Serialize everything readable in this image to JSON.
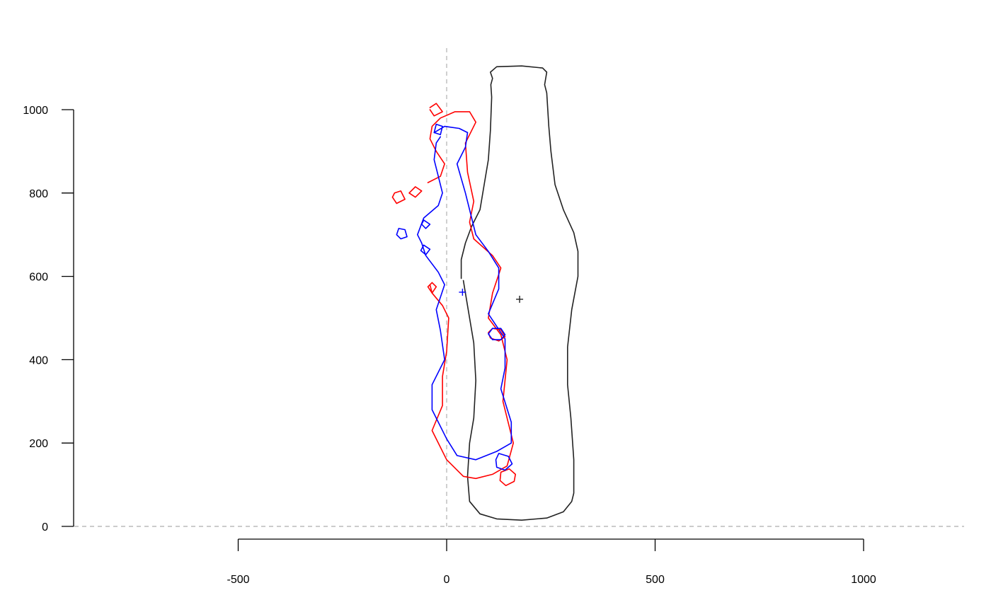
{
  "chart_data": {
    "type": "line",
    "xlim": [
      -500,
      1000
    ],
    "ylim": [
      0,
      1000
    ],
    "x_ticks": [
      -500,
      0,
      500,
      1000
    ],
    "y_ticks": [
      0,
      200,
      400,
      600,
      800,
      1000
    ],
    "x_tick_labels": [
      "-500",
      "0",
      "500",
      "1000"
    ],
    "y_tick_labels": [
      "0",
      "200",
      "400",
      "600",
      "800",
      "1000"
    ],
    "reference_lines": {
      "x": 0,
      "y": 0,
      "style": "dashed",
      "color": "#bbbbbb"
    },
    "grid": false,
    "series": [
      {
        "color": "#222222",
        "points": [
          [
            35,
            595
          ],
          [
            35,
            640
          ],
          [
            45,
            680
          ],
          [
            60,
            720
          ],
          [
            80,
            760
          ],
          [
            90,
            820
          ],
          [
            100,
            880
          ],
          [
            105,
            950
          ],
          [
            108,
            1030
          ],
          [
            106,
            1060
          ],
          [
            110,
            1075
          ],
          [
            105,
            1090
          ],
          [
            120,
            1103
          ],
          [
            180,
            1105
          ],
          [
            230,
            1100
          ],
          [
            240,
            1090
          ],
          [
            235,
            1060
          ],
          [
            240,
            1040
          ],
          [
            245,
            960
          ],
          [
            250,
            900
          ],
          [
            260,
            820
          ],
          [
            280,
            760
          ],
          [
            305,
            705
          ],
          [
            315,
            660
          ],
          [
            315,
            600
          ],
          [
            300,
            520
          ],
          [
            290,
            430
          ],
          [
            290,
            340
          ],
          [
            298,
            260
          ],
          [
            305,
            160
          ],
          [
            305,
            80
          ],
          [
            300,
            60
          ],
          [
            280,
            35
          ],
          [
            240,
            20
          ],
          [
            180,
            15
          ],
          [
            120,
            18
          ],
          [
            80,
            30
          ],
          [
            55,
            60
          ],
          [
            50,
            120
          ],
          [
            55,
            200
          ],
          [
            65,
            260
          ],
          [
            70,
            350
          ],
          [
            65,
            440
          ],
          [
            55,
            500
          ],
          [
            45,
            560
          ],
          [
            40,
            590
          ]
        ]
      },
      {
        "color": "#ff0000",
        "points": [
          [
            -45,
            825
          ],
          [
            -15,
            840
          ],
          [
            -5,
            870
          ],
          [
            -25,
            900
          ],
          [
            -40,
            930
          ],
          [
            -35,
            960
          ],
          [
            -15,
            980
          ],
          [
            20,
            995
          ],
          [
            55,
            995
          ],
          [
            70,
            970
          ],
          [
            45,
            920
          ],
          [
            50,
            850
          ],
          [
            65,
            780
          ],
          [
            55,
            730
          ],
          [
            65,
            690
          ],
          [
            110,
            650
          ],
          [
            130,
            620
          ],
          [
            110,
            560
          ],
          [
            100,
            500
          ],
          [
            130,
            460
          ],
          [
            145,
            400
          ],
          [
            135,
            300
          ],
          [
            160,
            200
          ],
          [
            145,
            145
          ],
          [
            110,
            125
          ],
          [
            70,
            115
          ],
          [
            40,
            120
          ],
          [
            0,
            160
          ],
          [
            -35,
            230
          ],
          [
            -10,
            290
          ],
          [
            -10,
            360
          ],
          [
            0,
            420
          ],
          [
            5,
            500
          ],
          [
            -10,
            530
          ],
          [
            -35,
            560
          ],
          [
            -40,
            580
          ]
        ]
      },
      {
        "color": "#0000ff",
        "points": [
          [
            -30,
            945
          ],
          [
            -5,
            960
          ],
          [
            30,
            955
          ],
          [
            50,
            945
          ],
          [
            45,
            910
          ],
          [
            25,
            870
          ],
          [
            45,
            800
          ],
          [
            60,
            740
          ],
          [
            70,
            700
          ],
          [
            100,
            660
          ],
          [
            125,
            620
          ],
          [
            125,
            570
          ],
          [
            100,
            510
          ],
          [
            140,
            450
          ],
          [
            140,
            380
          ],
          [
            130,
            330
          ],
          [
            155,
            250
          ],
          [
            155,
            200
          ],
          [
            120,
            180
          ],
          [
            70,
            160
          ],
          [
            25,
            170
          ],
          [
            0,
            210
          ],
          [
            -35,
            280
          ],
          [
            -35,
            340
          ],
          [
            -5,
            400
          ],
          [
            -15,
            470
          ],
          [
            -25,
            520
          ],
          [
            -5,
            580
          ],
          [
            -20,
            610
          ],
          [
            -50,
            650
          ],
          [
            -60,
            680
          ],
          [
            -70,
            700
          ],
          [
            -55,
            740
          ],
          [
            -20,
            770
          ],
          [
            -10,
            800
          ],
          [
            -20,
            840
          ],
          [
            -30,
            880
          ],
          [
            -25,
            920
          ],
          [
            -15,
            935
          ]
        ]
      },
      {
        "color": "#ff0000",
        "points": [
          [
            -40,
            1005
          ],
          [
            -25,
            1015
          ],
          [
            -10,
            995
          ],
          [
            -30,
            985
          ],
          [
            -40,
            1000
          ]
        ]
      },
      {
        "color": "#ff0000",
        "points": [
          [
            -125,
            800
          ],
          [
            -110,
            805
          ],
          [
            -100,
            785
          ],
          [
            -120,
            775
          ],
          [
            -130,
            790
          ],
          [
            -125,
            800
          ]
        ]
      },
      {
        "color": "#ff0000",
        "points": [
          [
            -75,
            815
          ],
          [
            -60,
            805
          ],
          [
            -75,
            790
          ],
          [
            -90,
            800
          ],
          [
            -75,
            815
          ]
        ]
      },
      {
        "color": "#ff0000",
        "points": [
          [
            -45,
            575
          ],
          [
            -35,
            585
          ],
          [
            -25,
            575
          ],
          [
            -35,
            560
          ],
          [
            -45,
            575
          ]
        ]
      },
      {
        "color": "#ff0000",
        "points": [
          [
            110,
            475
          ],
          [
            130,
            472
          ],
          [
            140,
            455
          ],
          [
            125,
            445
          ],
          [
            105,
            452
          ],
          [
            100,
            465
          ],
          [
            110,
            475
          ]
        ]
      },
      {
        "color": "#ff0000",
        "points": [
          [
            130,
            130
          ],
          [
            150,
            138
          ],
          [
            165,
            125
          ],
          [
            162,
            108
          ],
          [
            142,
            98
          ],
          [
            128,
            110
          ],
          [
            130,
            130
          ]
        ]
      },
      {
        "color": "#0000ff",
        "points": [
          [
            -25,
            965
          ],
          [
            -10,
            960
          ],
          [
            -15,
            940
          ],
          [
            -30,
            945
          ],
          [
            -25,
            965
          ]
        ]
      },
      {
        "color": "#0000ff",
        "points": [
          [
            -115,
            715
          ],
          [
            -100,
            712
          ],
          [
            -95,
            695
          ],
          [
            -110,
            690
          ],
          [
            -120,
            700
          ],
          [
            -115,
            715
          ]
        ]
      },
      {
        "color": "#0000ff",
        "points": [
          [
            -55,
            735
          ],
          [
            -40,
            725
          ],
          [
            -50,
            715
          ],
          [
            -60,
            725
          ],
          [
            -55,
            735
          ]
        ]
      },
      {
        "color": "#0000ff",
        "points": [
          [
            -55,
            675
          ],
          [
            -40,
            665
          ],
          [
            -50,
            652
          ],
          [
            -62,
            662
          ],
          [
            -55,
            675
          ]
        ]
      },
      {
        "color": "#0000ff",
        "points": [
          [
            110,
            475
          ],
          [
            130,
            475
          ],
          [
            140,
            460
          ],
          [
            130,
            448
          ],
          [
            110,
            448
          ],
          [
            100,
            462
          ],
          [
            110,
            475
          ]
        ]
      },
      {
        "color": "#0000ff",
        "points": [
          [
            125,
            175
          ],
          [
            148,
            168
          ],
          [
            157,
            150
          ],
          [
            140,
            135
          ],
          [
            120,
            142
          ],
          [
            118,
            160
          ],
          [
            125,
            175
          ]
        ]
      }
    ],
    "markers": [
      {
        "x": 175,
        "y": 545,
        "color": "#222222"
      },
      {
        "x": 38,
        "y": 562,
        "color": "#0000ff"
      }
    ]
  }
}
